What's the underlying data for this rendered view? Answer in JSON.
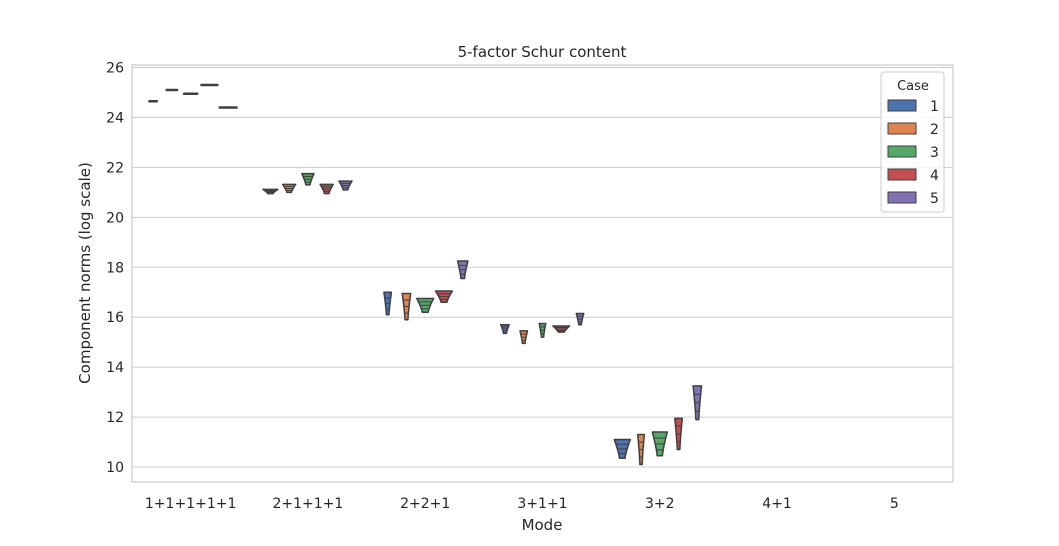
{
  "chart_data": {
    "type": "violin",
    "title": "5-factor Schur content",
    "xlabel": "Mode",
    "ylabel": "Component norms (log scale)",
    "categories": [
      "1+1+1+1+1",
      "2+1+1+1",
      "2+2+1",
      "3+1+1",
      "3+2",
      "4+1",
      "5"
    ],
    "yticks": [
      10,
      12,
      14,
      16,
      18,
      20,
      22,
      24,
      26
    ],
    "ylim": [
      9.4,
      26.1
    ],
    "grid": true,
    "legend": {
      "title": "Case",
      "position": "top-right",
      "entries": [
        "1",
        "2",
        "3",
        "4",
        "5"
      ]
    },
    "series": [
      {
        "name": "1",
        "color": "#4c72b0",
        "violins": [
          {
            "category": "1+1+1+1+1",
            "min": 24.63,
            "max": 24.67,
            "width": 0.4
          },
          {
            "category": "2+1+1+1",
            "min": 20.95,
            "max": 21.12,
            "width": 0.8
          },
          {
            "category": "2+2+1",
            "min": 16.1,
            "max": 17.0,
            "width": 0.4
          },
          {
            "category": "3+1+1",
            "min": 15.35,
            "max": 15.7,
            "width": 0.45
          },
          {
            "category": "3+2",
            "min": 10.35,
            "max": 11.1,
            "width": 0.85
          }
        ]
      },
      {
        "name": "2",
        "color": "#dd8452",
        "violins": [
          {
            "category": "1+1+1+1+1",
            "min": 25.08,
            "max": 25.12,
            "width": 0.55
          },
          {
            "category": "2+1+1+1",
            "min": 21.0,
            "max": 21.32,
            "width": 0.7
          },
          {
            "category": "2+2+1",
            "min": 15.9,
            "max": 16.95,
            "width": 0.45
          },
          {
            "category": "3+1+1",
            "min": 14.95,
            "max": 15.45,
            "width": 0.4
          },
          {
            "category": "3+2",
            "min": 10.1,
            "max": 11.3,
            "width": 0.35
          }
        ]
      },
      {
        "name": "3",
        "color": "#55a868",
        "violins": [
          {
            "category": "1+1+1+1+1",
            "min": 24.93,
            "max": 24.97,
            "width": 0.7
          },
          {
            "category": "2+1+1+1",
            "min": 21.3,
            "max": 21.75,
            "width": 0.65
          },
          {
            "category": "2+2+1",
            "min": 16.2,
            "max": 16.75,
            "width": 0.9
          },
          {
            "category": "3+1+1",
            "min": 15.2,
            "max": 15.75,
            "width": 0.35
          },
          {
            "category": "3+2",
            "min": 10.45,
            "max": 11.4,
            "width": 0.8
          }
        ]
      },
      {
        "name": "4",
        "color": "#c44e52",
        "violins": [
          {
            "category": "1+1+1+1+1",
            "min": 25.28,
            "max": 25.32,
            "width": 0.85
          },
          {
            "category": "2+1+1+1",
            "min": 20.95,
            "max": 21.32,
            "width": 0.7
          },
          {
            "category": "2+2+1",
            "min": 16.6,
            "max": 17.05,
            "width": 0.9
          },
          {
            "category": "3+1+1",
            "min": 15.4,
            "max": 15.65,
            "width": 0.9
          },
          {
            "category": "3+2",
            "min": 10.7,
            "max": 11.95,
            "width": 0.4
          }
        ]
      },
      {
        "name": "5",
        "color": "#8172b3",
        "violins": [
          {
            "category": "1+1+1+1+1",
            "min": 24.38,
            "max": 24.42,
            "width": 0.9
          },
          {
            "category": "2+1+1+1",
            "min": 21.1,
            "max": 21.45,
            "width": 0.7
          },
          {
            "category": "2+2+1",
            "min": 17.55,
            "max": 18.25,
            "width": 0.55
          },
          {
            "category": "3+1+1",
            "min": 15.7,
            "max": 16.15,
            "width": 0.4
          },
          {
            "category": "3+2",
            "min": 11.9,
            "max": 13.25,
            "width": 0.45
          }
        ]
      }
    ]
  }
}
